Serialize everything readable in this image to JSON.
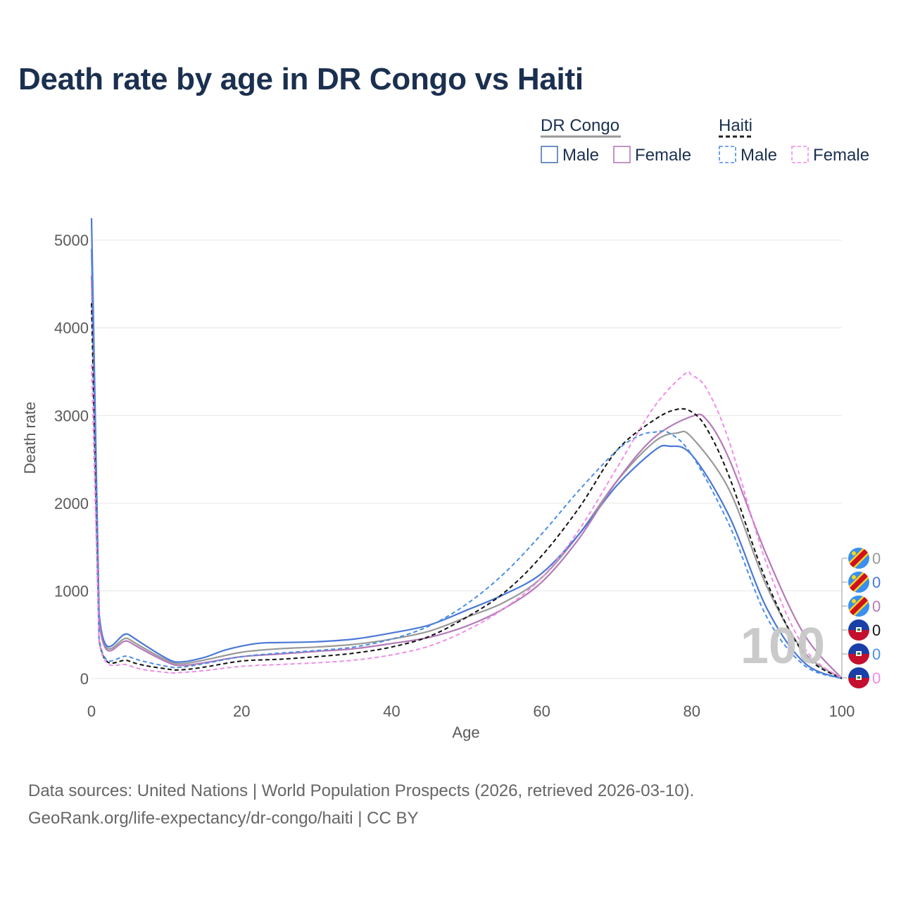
{
  "title": "Death rate by age in DR Congo vs Haiti",
  "footer": {
    "line1": "Data sources: United Nations | World Population Prospects (2026, retrieved 2026-03-10).",
    "line2": "GeoRank.org/life-expectancy/dr-congo/haiti | CC BY"
  },
  "legend": {
    "groups": [
      {
        "name": "DR Congo",
        "underline_color": "#999999",
        "dashed": false,
        "entries": [
          {
            "label": "Male",
            "color": "#4a78b8"
          },
          {
            "label": "Female",
            "color": "#b57ab8"
          }
        ]
      },
      {
        "name": "Haiti",
        "underline_color": "#222222",
        "dashed": true,
        "entries": [
          {
            "label": "Male",
            "color": "#4a8ee6"
          },
          {
            "label": "Female",
            "color": "#f08ce8"
          }
        ]
      }
    ]
  },
  "watermark": "100",
  "end_labels": [
    {
      "country": "DR Congo",
      "value": "0",
      "color": "#999999",
      "flag": "dr-congo-flag-icon"
    },
    {
      "country": "DR Congo",
      "value": "0",
      "color": "#4a78d8",
      "flag": "dr-congo-flag-icon"
    },
    {
      "country": "DR Congo",
      "value": "0",
      "color": "#b57ab8",
      "flag": "dr-congo-flag-icon"
    },
    {
      "country": "Haiti",
      "value": "0",
      "color": "#111111",
      "flag": "haiti-flag-icon"
    },
    {
      "country": "Haiti",
      "value": "0",
      "color": "#4a8ee6",
      "flag": "haiti-flag-icon"
    },
    {
      "country": "Haiti",
      "value": "0",
      "color": "#f08ce8",
      "flag": "haiti-flag-icon"
    }
  ],
  "chart_data": {
    "type": "line",
    "title": "Death rate by age in DR Congo vs Haiti",
    "xlabel": "Age",
    "ylabel": "Death rate",
    "xlim": [
      0,
      100
    ],
    "ylim": [
      0,
      5250
    ],
    "xticks": [
      0,
      20,
      40,
      60,
      80,
      100
    ],
    "yticks": [
      0,
      1000,
      2000,
      3000,
      4000,
      5000
    ],
    "grid": true,
    "legend_position": "top-right",
    "series": [
      {
        "name": "DR Congo (total)",
        "color": "#999999",
        "dash": false,
        "x": [
          0,
          1,
          5,
          10,
          12,
          15,
          20,
          25,
          30,
          35,
          40,
          45,
          50,
          55,
          60,
          65,
          70,
          75,
          78,
          80,
          85,
          90,
          95,
          100
        ],
        "y": [
          4900,
          720,
          450,
          210,
          170,
          210,
          300,
          340,
          360,
          390,
          450,
          540,
          700,
          870,
          1150,
          1650,
          2250,
          2700,
          2800,
          2750,
          2150,
          1050,
          300,
          0
        ]
      },
      {
        "name": "DR Congo Male",
        "color": "#4a78d8",
        "dash": false,
        "x": [
          0,
          1,
          5,
          10,
          12,
          15,
          18,
          22,
          25,
          30,
          35,
          40,
          45,
          50,
          55,
          60,
          65,
          70,
          75,
          77,
          80,
          85,
          90,
          95,
          100
        ],
        "y": [
          5250,
          750,
          500,
          230,
          190,
          240,
          330,
          400,
          410,
          420,
          450,
          520,
          610,
          780,
          960,
          1200,
          1650,
          2200,
          2600,
          2650,
          2550,
          1850,
          800,
          180,
          0
        ]
      },
      {
        "name": "DR Congo Female",
        "color": "#b57ab8",
        "dash": false,
        "x": [
          0,
          1,
          5,
          10,
          12,
          15,
          20,
          25,
          30,
          35,
          40,
          45,
          50,
          55,
          60,
          65,
          70,
          75,
          80,
          82,
          85,
          90,
          95,
          100
        ],
        "y": [
          4600,
          670,
          420,
          190,
          150,
          180,
          250,
          280,
          310,
          340,
          400,
          470,
          600,
          800,
          1100,
          1600,
          2250,
          2750,
          2990,
          2950,
          2500,
          1400,
          500,
          0
        ]
      },
      {
        "name": "Haiti (total)",
        "color": "#111111",
        "dash": true,
        "x": [
          0,
          1,
          5,
          10,
          12,
          15,
          20,
          25,
          30,
          35,
          40,
          45,
          50,
          55,
          60,
          65,
          70,
          75,
          78,
          80,
          82,
          85,
          90,
          95,
          100
        ],
        "y": [
          4280,
          440,
          200,
          110,
          100,
          130,
          200,
          220,
          250,
          290,
          360,
          480,
          700,
          980,
          1400,
          1950,
          2600,
          2950,
          3070,
          3040,
          2850,
          2300,
          1100,
          280,
          0
        ]
      },
      {
        "name": "Haiti Male",
        "color": "#4a8ee6",
        "dash": true,
        "x": [
          0,
          1,
          5,
          10,
          12,
          15,
          20,
          25,
          30,
          35,
          40,
          45,
          50,
          55,
          60,
          65,
          70,
          73,
          75,
          77,
          80,
          85,
          90,
          95,
          100
        ],
        "y": [
          4900,
          460,
          250,
          140,
          130,
          170,
          250,
          290,
          320,
          360,
          450,
          600,
          850,
          1200,
          1650,
          2150,
          2600,
          2770,
          2810,
          2800,
          2550,
          1750,
          700,
          150,
          0
        ]
      },
      {
        "name": "Haiti Female",
        "color": "#f08ce8",
        "dash": true,
        "x": [
          0,
          1,
          5,
          10,
          12,
          15,
          20,
          25,
          30,
          35,
          40,
          45,
          50,
          55,
          60,
          65,
          70,
          75,
          79,
          80,
          82,
          85,
          90,
          95,
          100
        ],
        "y": [
          3580,
          420,
          150,
          70,
          70,
          90,
          140,
          160,
          180,
          210,
          270,
          370,
          550,
          800,
          1150,
          1700,
          2400,
          3100,
          3470,
          3460,
          3300,
          2700,
          1300,
          350,
          0
        ]
      }
    ]
  }
}
